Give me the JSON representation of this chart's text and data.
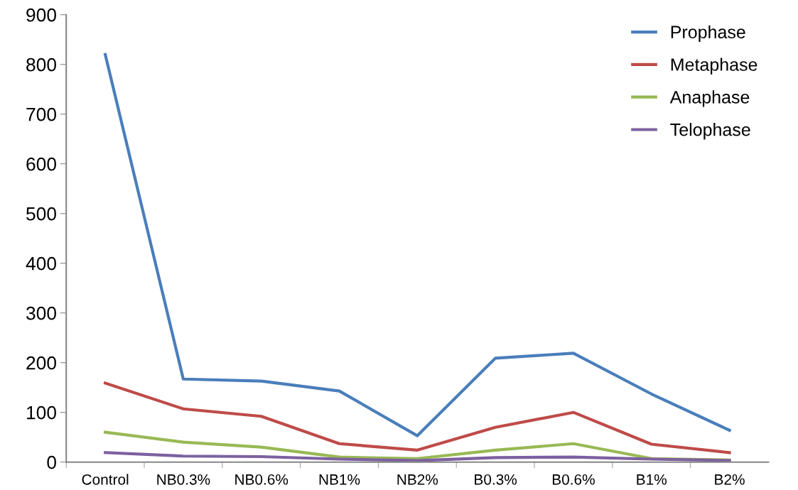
{
  "chart_data": {
    "type": "line",
    "categories": [
      "Control",
      "NB0.3%",
      "NB0.6%",
      "NB1%",
      "NB2%",
      "B0.3%",
      "B0.6%",
      "B1%",
      "B2%"
    ],
    "series": [
      {
        "name": "Prophase",
        "color": "#4a7ebb",
        "values": [
          820,
          167,
          163,
          143,
          53,
          209,
          219,
          137,
          64
        ]
      },
      {
        "name": "Metaphase",
        "color": "#be4b48",
        "values": [
          159,
          107,
          92,
          37,
          24,
          70,
          100,
          36,
          19
        ]
      },
      {
        "name": "Anaphase",
        "color": "#98b954",
        "values": [
          60,
          40,
          30,
          10,
          7,
          24,
          37,
          7,
          4
        ]
      },
      {
        "name": "Telophase",
        "color": "#7d60a0",
        "values": [
          19,
          12,
          11,
          6,
          3,
          9,
          10,
          6,
          3
        ]
      }
    ],
    "ylim": [
      0,
      900
    ],
    "yticks": [
      0,
      100,
      200,
      300,
      400,
      500,
      600,
      700,
      800,
      900
    ],
    "grid": false,
    "legend": "top right",
    "marker": "none",
    "line_style": "solid"
  }
}
